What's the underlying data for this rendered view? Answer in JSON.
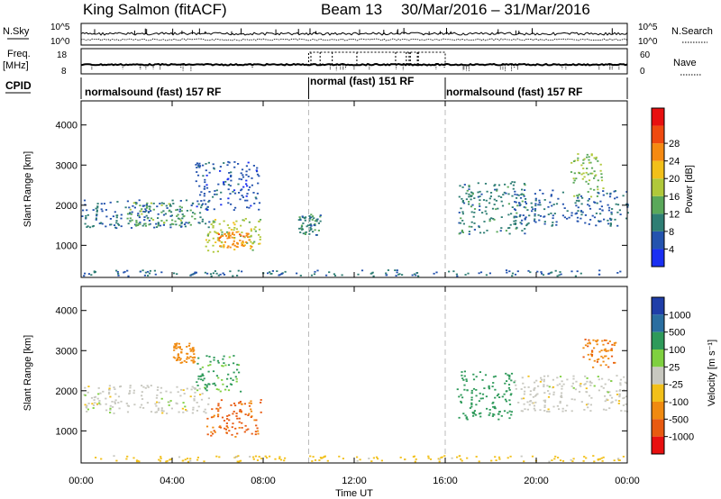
{
  "header": {
    "station": "King Salmon (fitACF)",
    "beam": "Beam 13",
    "dates": "30/Mar/2016 – 31/Mar/2016"
  },
  "top_panel": {
    "left_label": "N.Sky",
    "right_label": "N.Search",
    "left_ticks": [
      "10^5",
      "10^0"
    ],
    "right_ticks": [
      "10^5",
      "10^0"
    ]
  },
  "freq_panel": {
    "left_label_1": "Freq.",
    "left_label_2": "[MHz]",
    "right_label": "Nave",
    "left_ticks": [
      "18",
      "8"
    ],
    "right_ticks": [
      "60",
      "0"
    ]
  },
  "cpid": {
    "label": "CPID",
    "segments": [
      {
        "text": "normalsound (fast) 157 RF",
        "start_hour": 0,
        "end_hour": 10
      },
      {
        "text": "normal (fast) 151 RF",
        "start_hour": 10,
        "end_hour": 16
      },
      {
        "text": "normalsound (fast) 157 RF",
        "start_hour": 16,
        "end_hour": 24
      }
    ]
  },
  "time_axis": {
    "label": "Time UT",
    "ticks": [
      "00:00",
      "04:00",
      "08:00",
      "12:00",
      "16:00",
      "20:00",
      "00:00"
    ]
  },
  "chart_data": [
    {
      "type": "heatmap",
      "ylabel": "Slant Range [km]",
      "ylim": [
        200,
        4600
      ],
      "yticks": [
        "1000",
        "2000",
        "3000",
        "4000"
      ],
      "xlim": [
        0,
        24
      ],
      "colorbar": {
        "label": "Power [dB]",
        "ticks": [
          "4",
          "8",
          "12",
          "16",
          "20",
          "24",
          "28"
        ],
        "colors": [
          "#1a2ff2",
          "#2453ae",
          "#2f7e74",
          "#5aa85a",
          "#b0c83a",
          "#f2c01a",
          "#f58a12",
          "#ef4a10",
          "#e81010"
        ]
      },
      "regions": [
        {
          "x0": 0.0,
          "x1": 5.6,
          "y0": 1450,
          "y1": 2150,
          "value": 8
        },
        {
          "x0": 2.0,
          "x1": 5.0,
          "y0": 1500,
          "y1": 2100,
          "value": 14
        },
        {
          "x0": 5.0,
          "x1": 7.8,
          "y0": 1900,
          "y1": 3100,
          "value": 6
        },
        {
          "x0": 5.4,
          "x1": 7.9,
          "y0": 850,
          "y1": 1700,
          "value": 18
        },
        {
          "x0": 6.0,
          "x1": 7.5,
          "y0": 950,
          "y1": 1350,
          "value": 26
        },
        {
          "x0": 9.5,
          "x1": 10.5,
          "y0": 1250,
          "y1": 1800,
          "value": 10
        },
        {
          "x0": 16.5,
          "x1": 19.5,
          "y0": 1300,
          "y1": 2600,
          "value": 10
        },
        {
          "x0": 19.0,
          "x1": 24.0,
          "y0": 1500,
          "y1": 2400,
          "value": 7
        },
        {
          "x0": 21.5,
          "x1": 23.0,
          "y0": 2200,
          "y1": 3300,
          "value": 16
        },
        {
          "x0": 0.0,
          "x1": 24.0,
          "y0": 250,
          "y1": 400,
          "value": 8
        }
      ]
    },
    {
      "type": "heatmap",
      "ylabel": "Slant Range [km]",
      "ylim": [
        200,
        4600
      ],
      "yticks": [
        "1000",
        "2000",
        "3000",
        "4000"
      ],
      "xlim": [
        0,
        24
      ],
      "colorbar": {
        "label": "Velocity [m s⁻¹]",
        "ticks": [
          "1000",
          "500",
          "100",
          "25",
          "-25",
          "-100",
          "-500",
          "-1000"
        ],
        "colors": [
          "#1f3ea8",
          "#2a6ea0",
          "#2e9a5a",
          "#7fd040",
          "#c8c8c0",
          "#f2c01a",
          "#f08a10",
          "#e85a10",
          "#e81010"
        ]
      },
      "regions": [
        {
          "x0": 0.0,
          "x1": 5.6,
          "y0": 1450,
          "y1": 2150,
          "value": 0
        },
        {
          "x0": 4.0,
          "x1": 5.0,
          "y0": 2700,
          "y1": 3200,
          "value": -200
        },
        {
          "x0": 5.4,
          "x1": 7.9,
          "y0": 850,
          "y1": 1800,
          "value": -600
        },
        {
          "x0": 5.0,
          "x1": 7.0,
          "y0": 2000,
          "y1": 2900,
          "value": 120
        },
        {
          "x0": 16.5,
          "x1": 19.0,
          "y0": 1300,
          "y1": 2500,
          "value": 300
        },
        {
          "x0": 19.0,
          "x1": 24.0,
          "y0": 1500,
          "y1": 2400,
          "value": 0
        },
        {
          "x0": 22.0,
          "x1": 23.5,
          "y0": 2600,
          "y1": 3300,
          "value": -400
        },
        {
          "x0": 0.0,
          "x1": 24.0,
          "y0": 250,
          "y1": 400,
          "value": -50
        }
      ]
    }
  ]
}
